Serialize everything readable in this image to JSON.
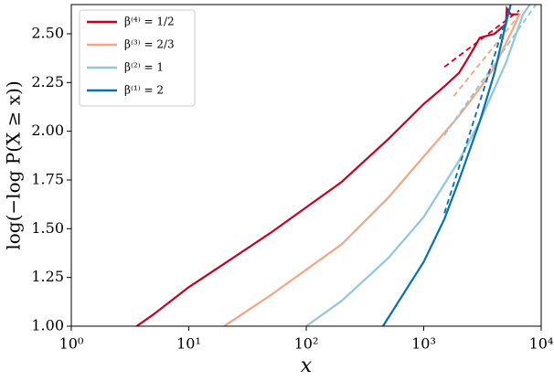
{
  "chart_data": {
    "type": "line",
    "x_label": "x",
    "y_label": "log(−log P(X ≥ x))",
    "xscale": "log",
    "xlim": [
      1,
      10000
    ],
    "ylim": [
      1.0,
      2.65
    ],
    "xticks": [
      {
        "value": 1,
        "label": "10⁰"
      },
      {
        "value": 10,
        "label": "10¹"
      },
      {
        "value": 100,
        "label": "10²"
      },
      {
        "value": 1000,
        "label": "10³"
      },
      {
        "value": 10000,
        "label": "10⁴"
      }
    ],
    "yticks": [
      {
        "value": 1.0,
        "label": "1.00"
      },
      {
        "value": 1.25,
        "label": "1.25"
      },
      {
        "value": 1.5,
        "label": "1.50"
      },
      {
        "value": 1.75,
        "label": "1.75"
      },
      {
        "value": 2.0,
        "label": "2.00"
      },
      {
        "value": 2.25,
        "label": "2.25"
      },
      {
        "value": 2.5,
        "label": "2.50"
      }
    ],
    "legend_position": "upper left",
    "series": [
      {
        "name": "β⁽⁴⁾ = 1/2",
        "color": "#ca0020",
        "x": [
          3.6,
          5,
          10,
          20,
          50,
          100,
          200,
          500,
          1000,
          1500,
          2000,
          2300,
          2700,
          3000,
          3500,
          4000,
          5000,
          5100,
          5500,
          6500
        ],
        "values": [
          1.0,
          1.06,
          1.2,
          1.32,
          1.48,
          1.61,
          1.74,
          1.96,
          2.14,
          2.23,
          2.3,
          2.36,
          2.43,
          2.48,
          2.49,
          2.5,
          2.55,
          2.63,
          2.6,
          2.6
        ],
        "fit": {
          "x": [
            1500,
            6500
          ],
          "values": [
            2.33,
            2.62
          ]
        }
      },
      {
        "name": "β⁽³⁾ = 2/3",
        "color": "#f4a582",
        "x": [
          20,
          50,
          100,
          200,
          500,
          1000,
          2000,
          3000,
          4000,
          5000,
          6000,
          6500
        ],
        "values": [
          1.0,
          1.16,
          1.29,
          1.42,
          1.66,
          1.87,
          2.08,
          2.22,
          2.33,
          2.45,
          2.55,
          2.6
        ],
        "fit": {
          "x": [
            1800,
            7000
          ],
          "values": [
            2.18,
            2.62
          ]
        }
      },
      {
        "name": "β⁽²⁾ = 1",
        "color": "#92c5de",
        "x": [
          100,
          200,
          500,
          1000,
          2000,
          3000,
          5000,
          7000,
          8000
        ],
        "values": [
          1.0,
          1.13,
          1.35,
          1.56,
          1.85,
          2.05,
          2.35,
          2.6,
          2.65
        ],
        "fit": {
          "x": [
            1500,
            9000
          ],
          "values": [
            1.98,
            2.65
          ]
        }
      },
      {
        "name": "β⁽¹⁾ = 2",
        "color": "#0571b0",
        "x": [
          450,
          1000,
          1500,
          2000,
          3000,
          4000,
          5000,
          5500
        ],
        "values": [
          1.0,
          1.33,
          1.55,
          1.75,
          2.05,
          2.3,
          2.55,
          2.65
        ],
        "fit": {
          "x": [
            1500,
            5500
          ],
          "values": [
            1.58,
            2.65
          ]
        }
      }
    ]
  }
}
